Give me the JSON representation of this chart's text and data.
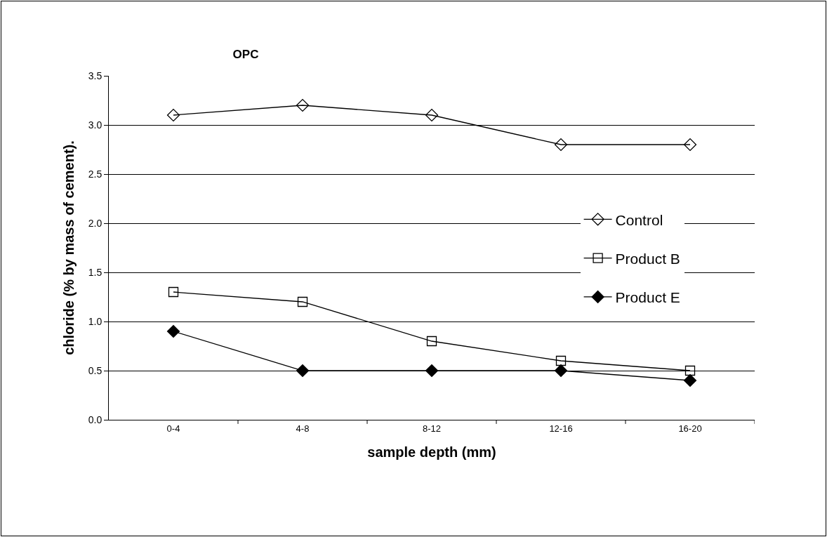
{
  "chart_data": {
    "type": "line",
    "title": "OPC",
    "xlabel": "sample depth (mm)",
    "ylabel": "chloride (% by mass of cement).",
    "categories": [
      "0-4",
      "4-8",
      "8-12",
      "12-16",
      "16-20"
    ],
    "series": [
      {
        "name": "Control",
        "color": "#000000",
        "marker": "diamond",
        "values": [
          3.1,
          3.2,
          3.1,
          2.8,
          2.8
        ]
      },
      {
        "name": "Product B",
        "color": "#000000",
        "marker": "square",
        "values": [
          1.3,
          1.2,
          0.8,
          0.6,
          0.5
        ]
      },
      {
        "name": "Product E",
        "color": "#000000",
        "marker": "diamond",
        "values": [
          0.9,
          0.5,
          0.5,
          0.5,
          0.4
        ]
      }
    ],
    "ylim": [
      0,
      3.5
    ],
    "yticks": [
      {
        "value": 0,
        "label": "0.0"
      },
      0.5,
      {
        "value": 1,
        "label": "1.0"
      },
      1.5,
      {
        "value": 2,
        "label": "2.0"
      },
      2.5,
      {
        "value": 3,
        "label": "3.0"
      },
      3.5
    ],
    "grid": "y",
    "legend": "right",
    "line_style": "solid"
  }
}
